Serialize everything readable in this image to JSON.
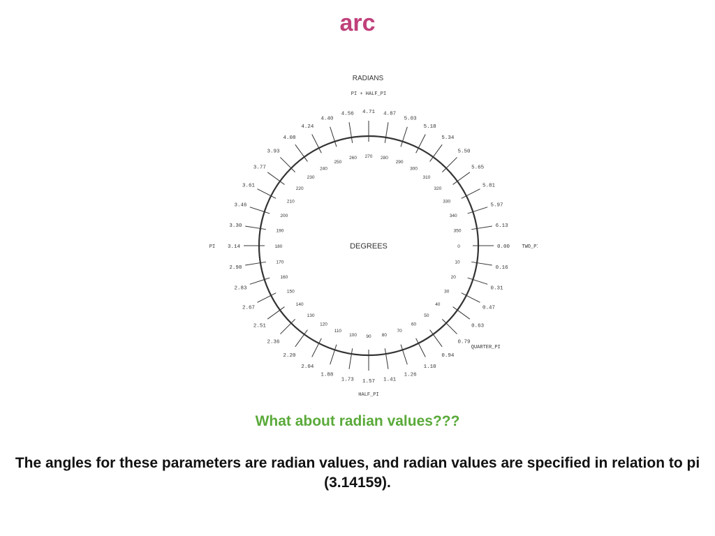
{
  "slide": {
    "title": "arc",
    "subheading": "What about radian values???",
    "body": "The angles for these parameters are radian values, and radian values are specified in relation to pi (3.14159)."
  },
  "diagram": {
    "outer_label": "RADIANS",
    "center_label": "DEGREES",
    "radian_ticks": [
      {
        "deg": 0,
        "label": "0.00"
      },
      {
        "deg": 9,
        "label": "0.16"
      },
      {
        "deg": 18,
        "label": "0.31"
      },
      {
        "deg": 27,
        "label": "0.47"
      },
      {
        "deg": 36,
        "label": "0.63"
      },
      {
        "deg": 45,
        "label": "0.79"
      },
      {
        "deg": 54,
        "label": "0.94"
      },
      {
        "deg": 63,
        "label": "1.10"
      },
      {
        "deg": 72,
        "label": "1.26"
      },
      {
        "deg": 81,
        "label": "1.41"
      },
      {
        "deg": 90,
        "label": "1.57"
      },
      {
        "deg": 99,
        "label": "1.73"
      },
      {
        "deg": 108,
        "label": "1.88"
      },
      {
        "deg": 117,
        "label": "2.04"
      },
      {
        "deg": 126,
        "label": "2.20"
      },
      {
        "deg": 135,
        "label": "2.36"
      },
      {
        "deg": 144,
        "label": "2.51"
      },
      {
        "deg": 153,
        "label": "2.67"
      },
      {
        "deg": 162,
        "label": "2.83"
      },
      {
        "deg": 171,
        "label": "2.98"
      },
      {
        "deg": 180,
        "label": "3.14"
      },
      {
        "deg": 189,
        "label": "3.30"
      },
      {
        "deg": 198,
        "label": "3.46"
      },
      {
        "deg": 207,
        "label": "3.61"
      },
      {
        "deg": 216,
        "label": "3.77"
      },
      {
        "deg": 225,
        "label": "3.93"
      },
      {
        "deg": 234,
        "label": "4.08"
      },
      {
        "deg": 243,
        "label": "4.24"
      },
      {
        "deg": 252,
        "label": "4.40"
      },
      {
        "deg": 261,
        "label": "4.56"
      },
      {
        "deg": 270,
        "label": "4.71"
      },
      {
        "deg": 279,
        "label": "4.87"
      },
      {
        "deg": 288,
        "label": "5.03"
      },
      {
        "deg": 297,
        "label": "5.18"
      },
      {
        "deg": 306,
        "label": "5.34"
      },
      {
        "deg": 315,
        "label": "5.50"
      },
      {
        "deg": 324,
        "label": "5.65"
      },
      {
        "deg": 333,
        "label": "5.81"
      },
      {
        "deg": 342,
        "label": "5.97"
      },
      {
        "deg": 351,
        "label": "6.13"
      }
    ],
    "degree_ticks": [
      0,
      10,
      20,
      30,
      40,
      50,
      60,
      70,
      80,
      90,
      100,
      110,
      120,
      130,
      140,
      150,
      160,
      170,
      180,
      190,
      200,
      210,
      220,
      230,
      240,
      250,
      260,
      270,
      280,
      290,
      300,
      310,
      320,
      330,
      340,
      350
    ],
    "constants": [
      {
        "deg": 0,
        "label": "TWO_PI"
      },
      {
        "deg": 45,
        "label": "QUARTER_PI"
      },
      {
        "deg": 90,
        "label": "HALF_PI"
      },
      {
        "deg": 180,
        "label": "PI"
      },
      {
        "deg": 270,
        "label": "PI + HALF_PI"
      }
    ]
  }
}
